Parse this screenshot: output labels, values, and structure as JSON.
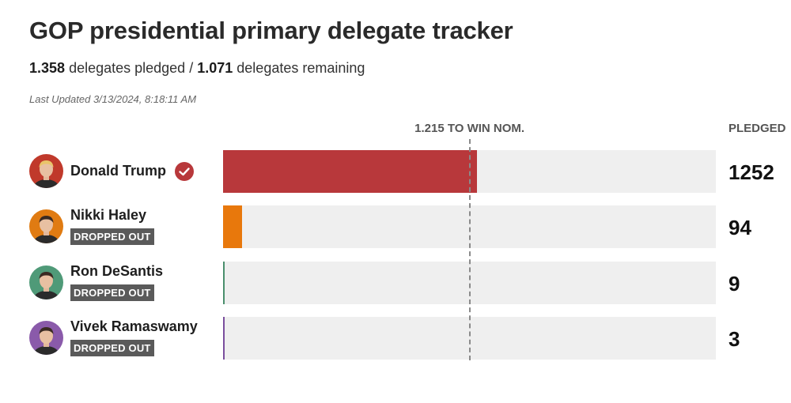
{
  "title": "GOP presidential primary delegate tracker",
  "subtitle": {
    "pledged_value": "1.358",
    "pledged_text": "delegates pledged /",
    "remaining_value": "1.071",
    "remaining_text": "delegates remaining"
  },
  "last_updated": "Last Updated 3/13/2024, 8:18:11 AM",
  "chart_data": {
    "type": "bar",
    "orientation": "horizontal",
    "title": "GOP presidential primary delegate tracker",
    "value_column_label": "PLEDGED",
    "threshold": {
      "label": "1.215 TO WIN NOM.",
      "value": 1215,
      "style": "dashed"
    },
    "xlim": [
      0,
      2429
    ],
    "categories": [
      "Donald Trump",
      "Nikki Haley",
      "Ron DeSantis",
      "Vivek Ramaswamy"
    ],
    "values": [
      1252,
      94,
      9,
      3
    ],
    "candidates": [
      {
        "name": "Donald Trump",
        "pledged": 1252,
        "value_label": "1252",
        "status": "winner",
        "color": "#b8383b",
        "avatar_bg": "#c0392b"
      },
      {
        "name": "Nikki Haley",
        "pledged": 94,
        "value_label": "94",
        "status": "DROPPED OUT",
        "color": "#e8780c",
        "avatar_bg": "#e07b12"
      },
      {
        "name": "Ron DeSantis",
        "pledged": 9,
        "value_label": "9",
        "status": "DROPPED OUT",
        "color": "#4a8f6d",
        "avatar_bg": "#4f9a78"
      },
      {
        "name": "Vivek Ramaswamy",
        "pledged": 3,
        "value_label": "3",
        "status": "DROPPED OUT",
        "color": "#7b4f9e",
        "avatar_bg": "#8a5aaa"
      }
    ]
  }
}
